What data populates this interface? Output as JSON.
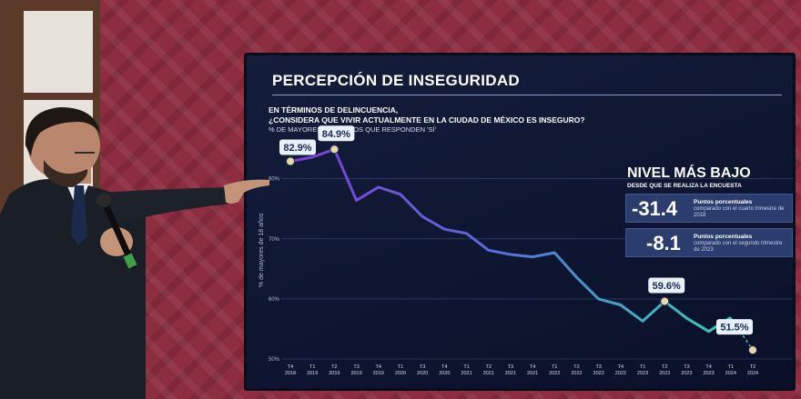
{
  "slide": {
    "title": "PERCEPCIÓN DE INSEGURIDAD",
    "question_line1": "EN TÉRMINOS DE DELINCUENCIA,",
    "question_line2": "¿CONSIDERA QUE VIVIR ACTUALMENTE EN LA CIUDAD DE MÉXICO ES INSEGURO?",
    "question_line3": "% DE MAYORES DE 18 AÑOS QUE RESPONDEN 'SÍ'",
    "side_title": "NIVEL MÁS BAJO",
    "side_subtitle": "DESDE QUE SE REALIZA LA ENCUESTA",
    "stats": [
      {
        "value": "-31.4",
        "label": "Puntos porcentuales",
        "detail": "comparado con el cuarto trimestre de 2018"
      },
      {
        "value": "-8.1",
        "label": "Puntos porcentuales",
        "detail": "comparado con el segundo trimestre de 2023"
      }
    ]
  },
  "colors": {
    "screen_bg": "#0d1530",
    "line_start": "#7a3fd6",
    "line_end": "#2fd3b8",
    "label_bg": "#e8f0fb"
  },
  "chart_data": {
    "type": "line",
    "ylabel": "% de mayores de 18 años",
    "ylim": [
      50,
      86
    ],
    "yticks": [
      "50%",
      "60%",
      "70%",
      "80%"
    ],
    "ytick_values": [
      50,
      60,
      70,
      80
    ],
    "categories": [
      [
        "T4",
        "2018"
      ],
      [
        "T1",
        "2019"
      ],
      [
        "T2",
        "2019"
      ],
      [
        "T3",
        "2019"
      ],
      [
        "T4",
        "2019"
      ],
      [
        "T1",
        "2020"
      ],
      [
        "T3",
        "2020"
      ],
      [
        "T4",
        "2020"
      ],
      [
        "T1",
        "2021"
      ],
      [
        "T2",
        "2021"
      ],
      [
        "T3",
        "2021"
      ],
      [
        "T4",
        "2021"
      ],
      [
        "T1",
        "2022"
      ],
      [
        "T2",
        "2022"
      ],
      [
        "T3",
        "2022"
      ],
      [
        "T4",
        "2022"
      ],
      [
        "T1",
        "2023"
      ],
      [
        "T2",
        "2023"
      ],
      [
        "T3",
        "2023"
      ],
      [
        "T4",
        "2023"
      ],
      [
        "T1",
        "2024"
      ],
      [
        "T2",
        "2024"
      ]
    ],
    "values": [
      82.9,
      83.6,
      84.9,
      76.4,
      78.6,
      77.4,
      73.7,
      71.6,
      70.9,
      68.1,
      67.4,
      67.0,
      67.7,
      63.6,
      60.0,
      59.0,
      56.3,
      59.6,
      56.8,
      54.6,
      56.9,
      51.5
    ],
    "labels": [
      {
        "index": 0,
        "text": "82.9%"
      },
      {
        "index": 2,
        "text": "84.9%"
      },
      {
        "index": 17,
        "text": "59.6%"
      },
      {
        "index": 21,
        "text": "51.5%"
      }
    ]
  }
}
